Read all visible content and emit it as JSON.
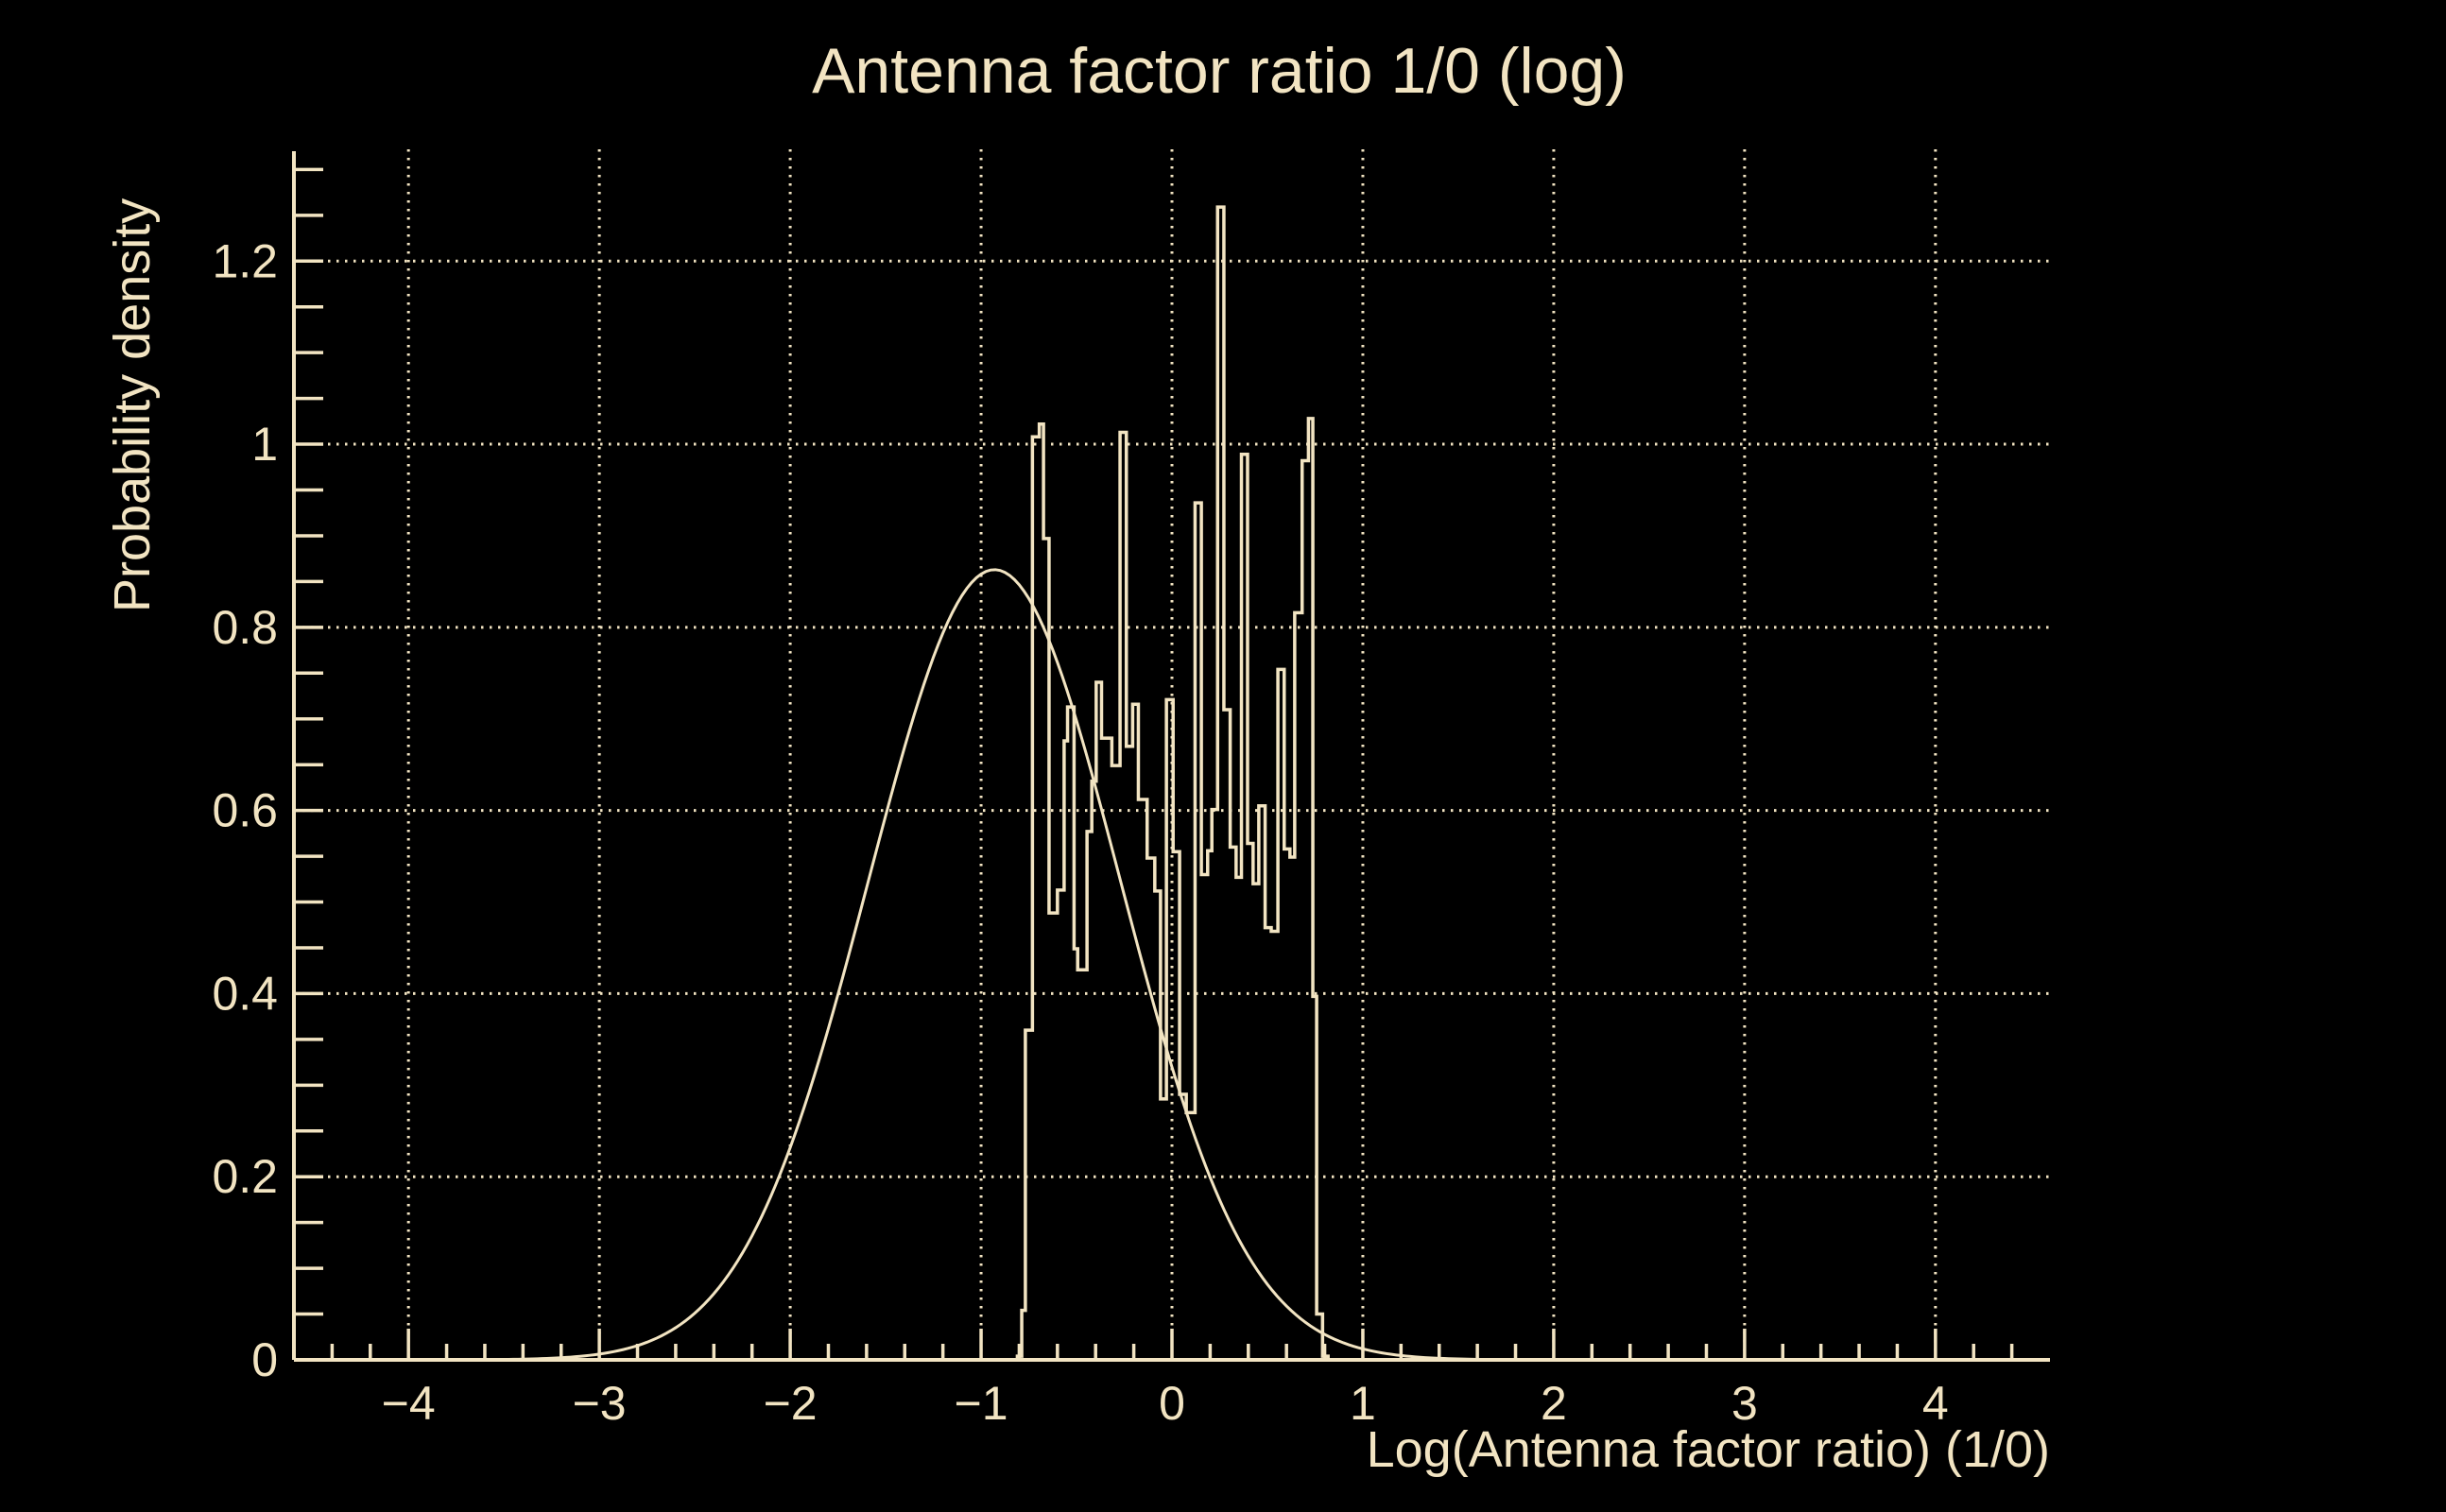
{
  "page": {
    "background": "#000000",
    "line_color": "#F2E4C2",
    "text_color": "#F2E4C2"
  },
  "chart_data": {
    "type": "histogram",
    "title": "Antenna factor ratio 1/0 (log)",
    "xlabel": "Log(Antenna factor ratio) (1/0)",
    "ylabel": "Probability density",
    "xlim": [
      -4.6,
      4.6
    ],
    "ylim": [
      0,
      1.32
    ],
    "grid": "dotted",
    "legend": null,
    "x_major_ticks": [
      -4,
      -3,
      -2,
      -1,
      0,
      1,
      2,
      3,
      4
    ],
    "x_tick_labels": [
      "−4",
      "−3",
      "−2",
      "−1",
      "0",
      "1",
      "2",
      "3",
      "4"
    ],
    "x_minor_step": 0.2,
    "y_major_ticks": [
      0,
      0.2,
      0.4,
      0.6,
      0.8,
      1,
      1.2
    ],
    "y_tick_labels": [
      "0",
      "0.2",
      "0.4",
      "0.6",
      "0.8",
      "1",
      "1.2"
    ],
    "y_minor_step": 0.05,
    "y_minor_max": 1.3,
    "series": [
      {
        "name": "histogram-step-line",
        "type": "step",
        "steps": [
          [
            -0.81,
            0.004
          ],
          [
            -0.787,
            0.054
          ],
          [
            -0.768,
            0.36
          ],
          [
            -0.731,
            1.008
          ],
          [
            -0.695,
            1.022
          ],
          [
            -0.673,
            0.897
          ],
          [
            -0.644,
            0.488
          ],
          [
            -0.6,
            0.513
          ],
          [
            -0.565,
            0.676
          ],
          [
            -0.547,
            0.713
          ],
          [
            -0.513,
            0.449
          ],
          [
            -0.494,
            0.426
          ],
          [
            -0.445,
            0.577
          ],
          [
            -0.42,
            0.632
          ],
          [
            -0.397,
            0.74
          ],
          [
            -0.369,
            0.679
          ],
          [
            -0.315,
            0.649
          ],
          [
            -0.272,
            1.013
          ],
          [
            -0.239,
            0.67
          ],
          [
            -0.206,
            0.716
          ],
          [
            -0.176,
            0.612
          ],
          [
            -0.13,
            0.548
          ],
          [
            -0.09,
            0.512
          ],
          [
            -0.06,
            0.285
          ],
          [
            -0.029,
            0.721
          ],
          [
            0.006,
            0.555
          ],
          [
            0.04,
            0.29
          ],
          [
            0.075,
            0.27
          ],
          [
            0.121,
            0.936
          ],
          [
            0.154,
            0.53
          ],
          [
            0.187,
            0.556
          ],
          [
            0.209,
            0.601
          ],
          [
            0.239,
            1.259
          ],
          [
            0.272,
            0.71
          ],
          [
            0.305,
            0.56
          ],
          [
            0.336,
            0.527
          ],
          [
            0.364,
            0.989
          ],
          [
            0.396,
            0.564
          ],
          [
            0.425,
            0.52
          ],
          [
            0.455,
            0.605
          ],
          [
            0.488,
            0.472
          ],
          [
            0.52,
            0.468
          ],
          [
            0.555,
            0.754
          ],
          [
            0.588,
            0.558
          ],
          [
            0.618,
            0.549
          ],
          [
            0.643,
            0.816
          ],
          [
            0.682,
            0.982
          ],
          [
            0.715,
            1.028
          ],
          [
            0.738,
            0.397
          ],
          [
            0.758,
            0.05
          ],
          [
            0.789,
            0.004
          ],
          [
            0.818,
            0.0
          ]
        ]
      },
      {
        "name": "gaussian-fit-curve",
        "type": "gaussian",
        "mu": -0.93,
        "sigma": 0.66,
        "amplitude": 0.863,
        "draw_range": [
          -3.9,
          2.35
        ]
      }
    ]
  }
}
